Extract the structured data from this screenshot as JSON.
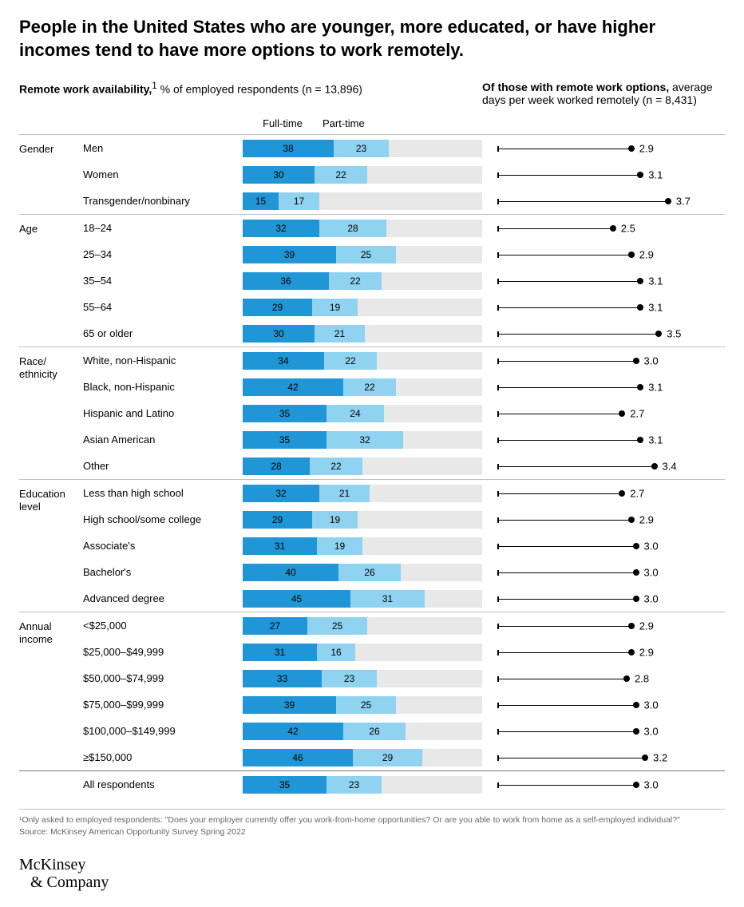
{
  "title": "People in the United States who are younger, more educated, or have higher incomes tend to have more options to work remotely.",
  "left_subhead_bold": "Remote work availability,",
  "left_subhead_sup": "1",
  "left_subhead_rest": " % of employed respondents (n = 13,896)",
  "right_subhead_bold": "Of those with remote work options,",
  "right_subhead_rest": " average days per week worked remotely (n = 8,431)",
  "legend_full": "Full-time",
  "legend_part": "Part-time",
  "colors": {
    "full_time": "#2196d6",
    "part_time": "#8fd3f0",
    "bar_bg": "#e8e8e8",
    "text": "#000000",
    "divider": "#bfbfbf"
  },
  "bar_max_percent": 100,
  "days_max": 4.0,
  "groups": [
    {
      "label": "Gender",
      "rows": [
        {
          "label": "Men",
          "ft": 38,
          "pt": 23,
          "days": 2.9
        },
        {
          "label": "Women",
          "ft": 30,
          "pt": 22,
          "days": 3.1
        },
        {
          "label": "Transgender/nonbinary",
          "ft": 15,
          "pt": 17,
          "days": 3.7
        }
      ]
    },
    {
      "label": "Age",
      "rows": [
        {
          "label": "18–24",
          "ft": 32,
          "pt": 28,
          "days": 2.5
        },
        {
          "label": "25–34",
          "ft": 39,
          "pt": 25,
          "days": 2.9
        },
        {
          "label": "35–54",
          "ft": 36,
          "pt": 22,
          "days": 3.1
        },
        {
          "label": "55–64",
          "ft": 29,
          "pt": 19,
          "days": 3.1
        },
        {
          "label": "65 or older",
          "ft": 30,
          "pt": 21,
          "days": 3.5
        }
      ]
    },
    {
      "label": "Race/\nethnicity",
      "rows": [
        {
          "label": "White, non-Hispanic",
          "ft": 34,
          "pt": 22,
          "days": 3.0
        },
        {
          "label": "Black, non-Hispanic",
          "ft": 42,
          "pt": 22,
          "days": 3.1
        },
        {
          "label": "Hispanic and Latino",
          "ft": 35,
          "pt": 24,
          "days": 2.7
        },
        {
          "label": "Asian American",
          "ft": 35,
          "pt": 32,
          "days": 3.1
        },
        {
          "label": "Other",
          "ft": 28,
          "pt": 22,
          "days": 3.4
        }
      ]
    },
    {
      "label": "Education level",
      "rows": [
        {
          "label": "Less than high school",
          "ft": 32,
          "pt": 21,
          "days": 2.7
        },
        {
          "label": "High school/some college",
          "ft": 29,
          "pt": 19,
          "days": 2.9
        },
        {
          "label": "Associate's",
          "ft": 31,
          "pt": 19,
          "days": 3.0
        },
        {
          "label": "Bachelor's",
          "ft": 40,
          "pt": 26,
          "days": 3.0
        },
        {
          "label": "Advanced degree",
          "ft": 45,
          "pt": 31,
          "days": 3.0
        }
      ]
    },
    {
      "label": "Annual income",
      "rows": [
        {
          "label": "<$25,000",
          "ft": 27,
          "pt": 25,
          "days": 2.9
        },
        {
          "label": "$25,000–$49,999",
          "ft": 31,
          "pt": 16,
          "days": 2.9
        },
        {
          "label": "$50,000–$74,999",
          "ft": 33,
          "pt": 23,
          "days": 2.8
        },
        {
          "label": "$75,000–$99,999",
          "ft": 39,
          "pt": 25,
          "days": 3.0
        },
        {
          "label": "$100,000–$149,999",
          "ft": 42,
          "pt": 26,
          "days": 3.0
        },
        {
          "label": "≥$150,000",
          "ft": 46,
          "pt": 29,
          "days": 3.2
        }
      ]
    }
  ],
  "summary": {
    "label": "All respondents",
    "ft": 35,
    "pt": 23,
    "days": 3.0
  },
  "footnote1": "¹Only asked to employed respondents: \"Does your employer currently offer you work-from-home opportunities? Or are you able to work from home as a self-employed individual?\"",
  "footnote2": "Source: McKinsey American Opportunity Survey Spring 2022",
  "logo_line1": "McKinsey",
  "logo_line2": "& Company"
}
